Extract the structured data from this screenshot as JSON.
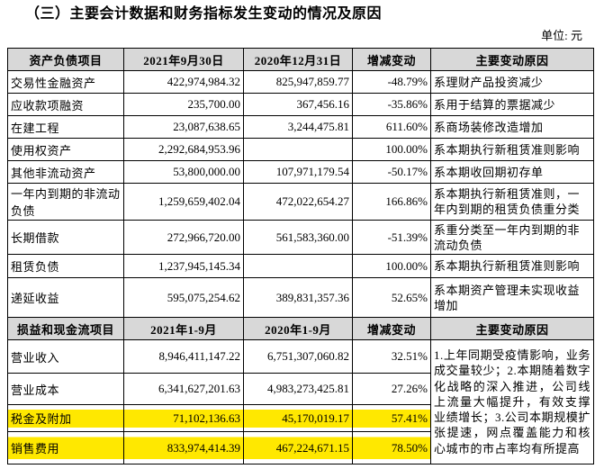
{
  "title": "（三）主要会计数据和财务指标发生变动的情况及原因",
  "unit_label": "单位: 元",
  "colors": {
    "highlight": "#ffe800",
    "header_bg": "#d8d8d8",
    "border": "#000000"
  },
  "balance_table": {
    "headers": [
      "资产负债项目",
      "2021年9月30日",
      "2020年12月31日",
      "增减变动",
      "主要变动原因"
    ],
    "rows": [
      {
        "item": "交易性金融资产",
        "current": "422,974,984.32",
        "prior": "825,947,859.77",
        "change": "-48.79%",
        "reason": "系理财产品投资减少",
        "highlight": false
      },
      {
        "item": "应收款项融资",
        "current": "235,700.00",
        "prior": "367,456.16",
        "change": "-35.86%",
        "reason": "系用于结算的票据减少",
        "highlight": false
      },
      {
        "item": "在建工程",
        "current": "23,087,638.65",
        "prior": "3,244,475.81",
        "change": "611.60%",
        "reason": "系商场装修改造增加",
        "highlight": false
      },
      {
        "item": "使用权资产",
        "current": "2,292,684,953.96",
        "prior": "",
        "change": "100.00%",
        "reason": "系本期执行新租赁准则影响",
        "highlight": false
      },
      {
        "item": "其他非流动资产",
        "current": "53,800,000.00",
        "prior": "107,971,179.54",
        "change": "-50.17%",
        "reason": "系本期收回期初存单",
        "highlight": false
      },
      {
        "item": "一年内到期的非流动负债",
        "current": "1,259,659,402.04",
        "prior": "472,022,654.27",
        "change": "166.86%",
        "reason": "系本期执行新租赁准则，一年内到期的租赁负债重分类",
        "highlight": false
      },
      {
        "item": "长期借款",
        "current": "272,966,720.00",
        "prior": "561,583,360.00",
        "change": "-51.39%",
        "reason": "系重分类至一年内到期的非流动负债",
        "highlight": false
      },
      {
        "item": "租赁负债",
        "current": "1,237,945,145.34",
        "prior": "",
        "change": "100.00%",
        "reason": "系本期执行新租赁准则影响",
        "highlight": false
      },
      {
        "item": "递延收益",
        "current": "595,075,254.62",
        "prior": "389,831,357.36",
        "change": "52.65%",
        "reason": "系本期资产管理未实现收益增加",
        "highlight": false
      }
    ]
  },
  "income_table": {
    "headers": [
      "损益和现金流项目",
      "2021年1-9月",
      "2020年1-9月",
      "增减变动",
      "主要变动原因"
    ],
    "rows": [
      {
        "item": "营业收入",
        "current": "8,946,411,147.22",
        "prior": "6,751,307,060.82",
        "change": "32.51%",
        "highlight": false
      },
      {
        "item": "营业成本",
        "current": "6,341,627,201.63",
        "prior": "4,983,273,425.81",
        "change": "27.26%",
        "highlight": false
      },
      {
        "item": "税金及附加",
        "current": "71,102,136.63",
        "prior": "45,170,019.17",
        "change": "57.41%",
        "highlight": true
      },
      {
        "item": "销售费用",
        "current": "833,974,414.39",
        "prior": "467,224,671.15",
        "change": "78.50%",
        "highlight": true
      }
    ],
    "merged_reason": "1.上年同期受疫情影响，业务成交量较少；2.本期随着数字化战略的深入推进，公司线上流量大幅提升，有效支撑业绩增长；3.公司本期规模扩张提速，网点覆盖能力和核心城市的市占率均有所提高"
  }
}
